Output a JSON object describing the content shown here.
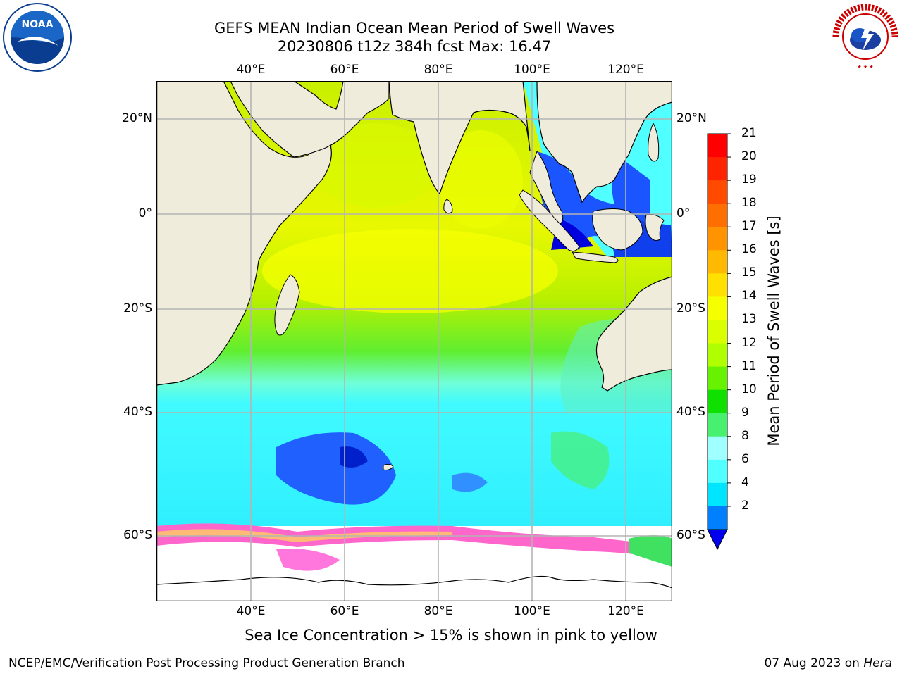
{
  "title_line1": "GEFS MEAN Indian Ocean Mean Period of Swell Waves",
  "title_line2": "20230806 t12z 384h fcst   Max: 16.47",
  "lon_labels": [
    "40°E",
    "60°E",
    "80°E",
    "100°E",
    "120°E"
  ],
  "lat_labels": [
    "20°N",
    "0°",
    "20°S",
    "40°S",
    "60°S"
  ],
  "colorbar": {
    "label": "Mean Period of Swell Waves [s]",
    "ticks": [
      "21",
      "20",
      "19",
      "18",
      "17",
      "16",
      "15",
      "14",
      "13",
      "12",
      "11",
      "10",
      "9",
      "8",
      "6",
      "4",
      "2"
    ],
    "colors": [
      "#ff0000",
      "#ff2400",
      "#ff4a00",
      "#ff6f00",
      "#ff9400",
      "#ffb900",
      "#ffe000",
      "#f5ff00",
      "#d9ff00",
      "#b0ff00",
      "#66f200",
      "#10e000",
      "#48f070",
      "#a0ffff",
      "#50ffff",
      "#00e5ff",
      "#0080ff"
    ]
  },
  "footer_note": "Sea Ice Concentration > 15% is shown in pink to yellow",
  "footer_left": "NCEP/EMC/Verification Post Processing Product Generation Branch",
  "footer_right_prefix": "07 Aug 2023 on ",
  "footer_right_machine": "Hera",
  "logos": {
    "noaa_text": "NOAA",
    "nws_text": "NATIONAL WEATHER SERVICE"
  },
  "colors": {
    "land": "#efecdc",
    "grid": "#b4b4b4",
    "ice_edge": "#ff66cc"
  }
}
